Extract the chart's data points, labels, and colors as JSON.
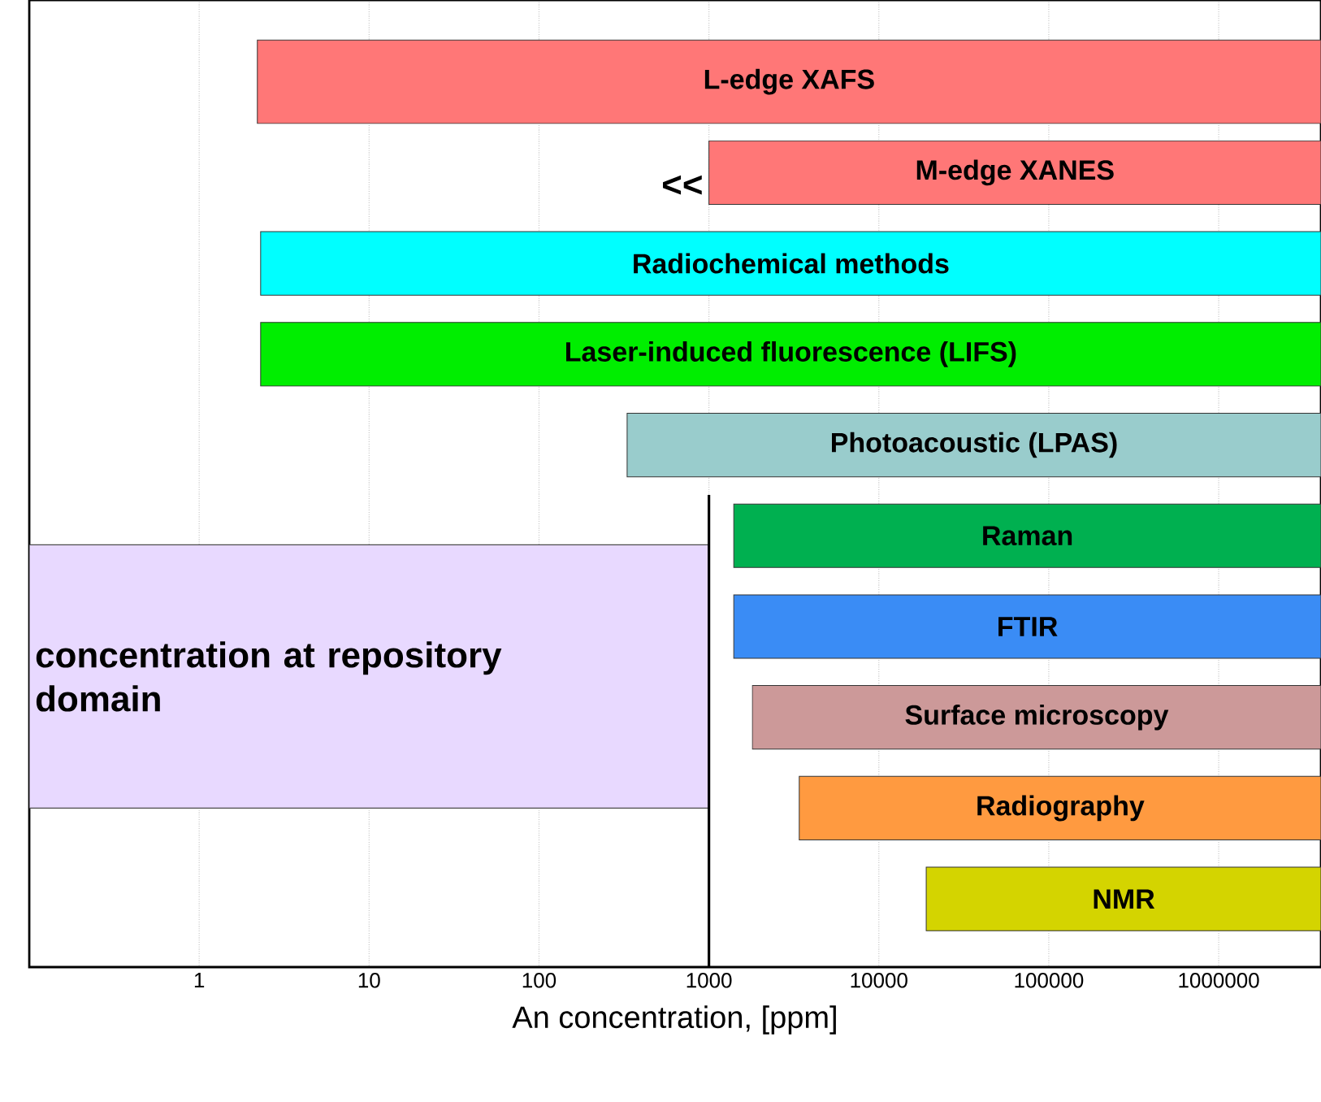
{
  "chart_data": {
    "type": "bar",
    "orientation": "horizontal",
    "xlabel": "An concentration, [ppm]",
    "log": "x",
    "grid": "x",
    "categories": [
      "L-edge  XAFS",
      "M-edge  XANES",
      "Radiochemical methods",
      "Laser-induced fluorescence (LIFS)",
      "Photoacoustic (LPAS)",
      "Raman",
      "FTIR",
      "Surface microscopy",
      "Radiography",
      "NMR"
    ],
    "base": [
      2.2,
      1000,
      2.3,
      2.3,
      330,
      1400,
      1400,
      1800,
      3400,
      19000
    ],
    "values": [
      3999997.8,
      3999000,
      3999997.7,
      3999997.7,
      3999670,
      3998600,
      3998600,
      3998200,
      3996600,
      3981000
    ],
    "colors": [
      "#ff7777",
      "#ff7777",
      "#00ffff",
      "#00ee00",
      "#99cccc",
      "#00b050",
      "#3a8cf5",
      "#cc9999",
      "#ff9a40",
      "#d4d400"
    ],
    "xlim": [
      0.1,
      4000000
    ],
    "xticks": [
      1,
      10,
      100,
      1000,
      10000,
      100000,
      1000000
    ],
    "bands": [
      {
        "axis": "x",
        "from": 0.1,
        "to": 1000,
        "label": "concentration at repository domain",
        "color": "#e8d9ff"
      }
    ],
    "ref_lines": [
      {
        "axis": "x",
        "value": 1000,
        "color": "#000000"
      }
    ],
    "annotations": [
      "<<"
    ]
  }
}
